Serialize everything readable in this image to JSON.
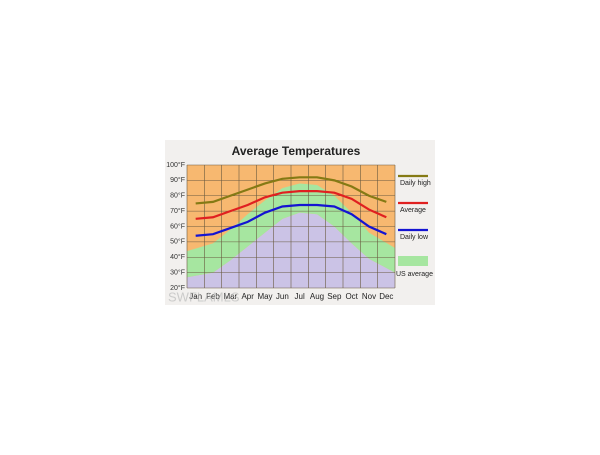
{
  "chart_data": {
    "type": "line",
    "title": "Average Temperatures",
    "categories": [
      "Jan",
      "Feb",
      "Mar",
      "Apr",
      "May",
      "Jun",
      "Jul",
      "Aug",
      "Sep",
      "Oct",
      "Nov",
      "Dec"
    ],
    "series": [
      {
        "name": "Daily high",
        "color": "#857a14",
        "values": [
          75,
          76,
          80,
          84,
          88,
          91,
          92,
          92,
          90,
          86,
          80,
          76
        ]
      },
      {
        "name": "Average",
        "color": "#e02020",
        "values": [
          65,
          66,
          70,
          74,
          79,
          82,
          83,
          83,
          82,
          78,
          71,
          66
        ]
      },
      {
        "name": "Daily low",
        "color": "#1414d2",
        "values": [
          54,
          55,
          59,
          63,
          69,
          73,
          74,
          74,
          73,
          68,
          60,
          55
        ]
      }
    ],
    "bands": [
      {
        "name": "US average",
        "color": "#a6e6a0",
        "low": [
          27,
          30,
          38,
          47,
          56,
          65,
          69,
          68,
          60,
          49,
          39,
          30
        ],
        "high": [
          44,
          49,
          58,
          68,
          77,
          85,
          88,
          87,
          80,
          69,
          56,
          46
        ]
      }
    ],
    "ylim": [
      20,
      100
    ],
    "yticks": [
      {
        "value": 20,
        "label": "20°F"
      },
      {
        "value": 30,
        "label": "30°F"
      },
      {
        "value": 40,
        "label": "40°F"
      },
      {
        "value": 50,
        "label": "50°F"
      },
      {
        "value": 60,
        "label": "60°F"
      },
      {
        "value": 70,
        "label": "70°F"
      },
      {
        "value": 80,
        "label": "80°F"
      },
      {
        "value": 90,
        "label": "90°F"
      },
      {
        "value": 100,
        "label": "100°F"
      }
    ],
    "grid": true,
    "watermark": "SWFLAMLS"
  }
}
